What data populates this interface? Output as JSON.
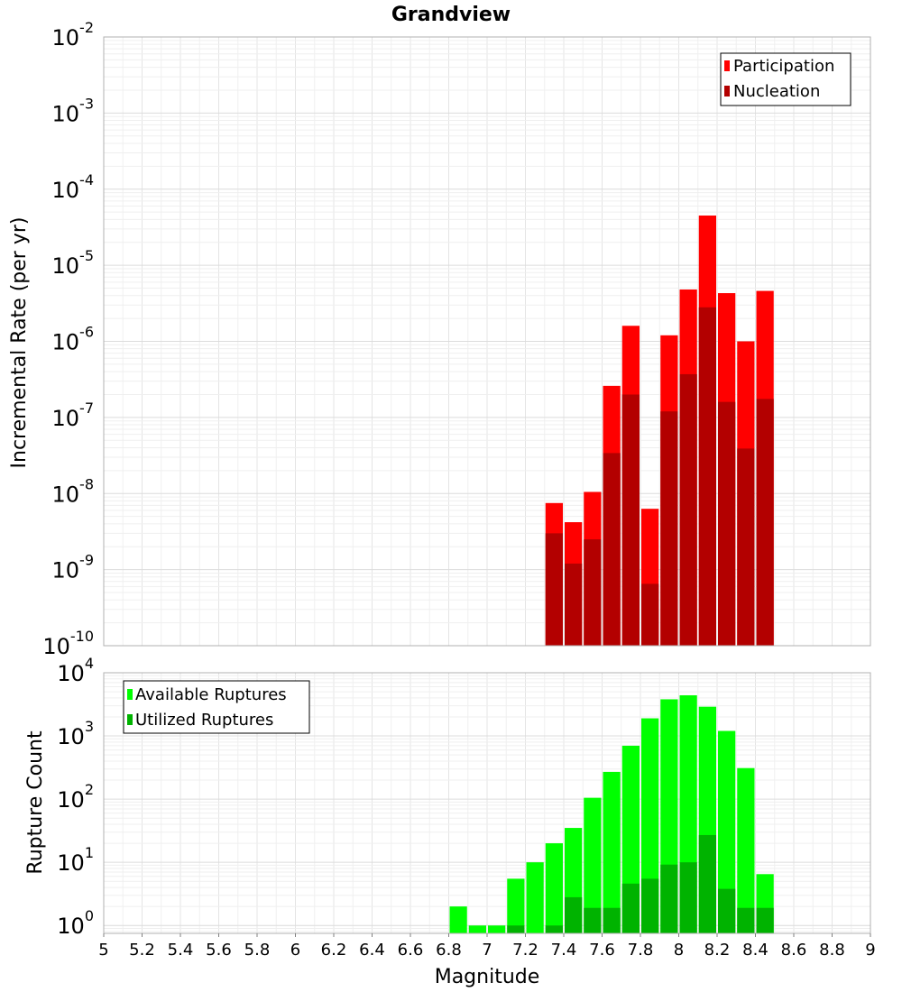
{
  "title": "Grandview",
  "chart_data": [
    {
      "type": "bar",
      "ylabel": "Incremental Rate (per yr)",
      "yscale": "log",
      "ylim": [
        1e-10,
        0.01
      ],
      "xlim": [
        5,
        9
      ],
      "bin_width": 0.1,
      "legend_position": "top-right",
      "grid": true,
      "y_ticks": [
        {
          "base": "10",
          "exp": "-10"
        },
        {
          "base": "10",
          "exp": "-9"
        },
        {
          "base": "10",
          "exp": "-8"
        },
        {
          "base": "10",
          "exp": "-7"
        },
        {
          "base": "10",
          "exp": "-6"
        },
        {
          "base": "10",
          "exp": "-5"
        },
        {
          "base": "10",
          "exp": "-4"
        },
        {
          "base": "10",
          "exp": "-3"
        },
        {
          "base": "10",
          "exp": "-2"
        }
      ],
      "x": [
        7.35,
        7.45,
        7.55,
        7.65,
        7.75,
        7.85,
        7.95,
        8.05,
        8.15,
        8.25,
        8.35,
        8.45
      ],
      "series": [
        {
          "name": "Participation",
          "color": "#ff0000",
          "values": [
            7.5e-09,
            4.2e-09,
            1.05e-08,
            2.6e-07,
            1.6e-06,
            6.3e-09,
            1.2e-06,
            4.8e-06,
            4.5e-05,
            4.3e-06,
            1e-06,
            4.6e-06
          ]
        },
        {
          "name": "Nucleation",
          "color": "#b30000",
          "values": [
            3e-09,
            1.2e-09,
            2.5e-09,
            3.4e-08,
            2e-07,
            6.5e-10,
            1.2e-07,
            3.7e-07,
            2.8e-06,
            1.6e-07,
            3.9e-08,
            1.75e-07
          ]
        }
      ]
    },
    {
      "type": "bar",
      "xlabel": "Magnitude",
      "ylabel": "Rupture Count",
      "yscale": "log",
      "ylim": [
        0.75,
        10000
      ],
      "xlim": [
        5,
        9
      ],
      "bin_width": 0.1,
      "legend_position": "top-left",
      "grid": true,
      "y_ticks": [
        {
          "base": "10",
          "exp": "0"
        },
        {
          "base": "10",
          "exp": "1"
        },
        {
          "base": "10",
          "exp": "2"
        },
        {
          "base": "10",
          "exp": "3"
        },
        {
          "base": "10",
          "exp": "4"
        }
      ],
      "x_ticks": [
        "5",
        "5.2",
        "5.4",
        "5.6",
        "5.8",
        "6",
        "6.2",
        "6.4",
        "6.6",
        "6.8",
        "7",
        "7.2",
        "7.4",
        "7.6",
        "7.8",
        "8",
        "8.2",
        "8.4",
        "8.6",
        "8.8",
        "9"
      ],
      "x": [
        6.85,
        6.95,
        7.05,
        7.15,
        7.25,
        7.35,
        7.45,
        7.55,
        7.65,
        7.75,
        7.85,
        7.95,
        8.05,
        8.15,
        8.25,
        8.35,
        8.45
      ],
      "series": [
        {
          "name": "Available Ruptures",
          "color": "#00ff00",
          "values": [
            2,
            1,
            1,
            5.5,
            10,
            20,
            35,
            105,
            270,
            700,
            1900,
            3800,
            4400,
            2900,
            1200,
            310,
            6.5
          ]
        },
        {
          "name": "Utilized Ruptures",
          "color": "#00b300",
          "values": [
            null,
            null,
            null,
            1,
            null,
            1,
            2.8,
            1.9,
            1.9,
            4.6,
            5.5,
            9.2,
            10,
            27,
            3.8,
            1.9,
            1.9
          ]
        }
      ]
    }
  ]
}
